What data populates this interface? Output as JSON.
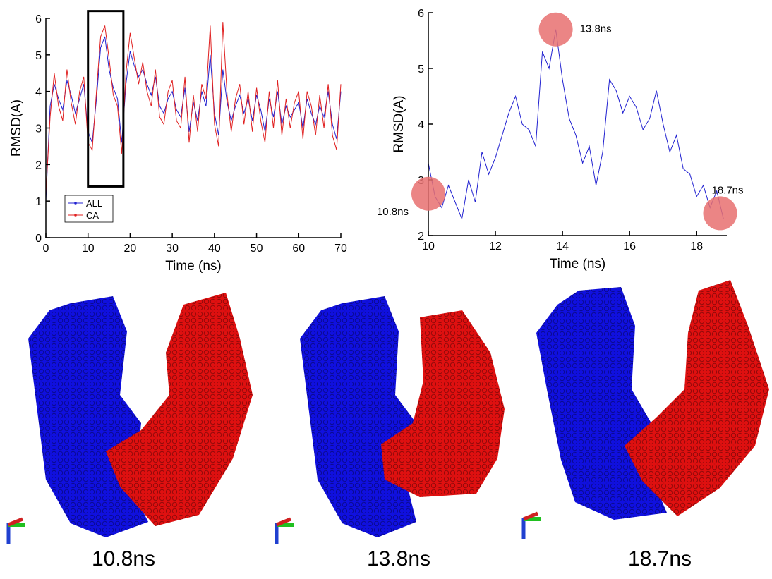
{
  "chart_data": [
    {
      "type": "line",
      "xlabel": "Time (ns)",
      "ylabel": "RMSD(A)",
      "xlim": [
        0,
        70
      ],
      "xticks": [
        0,
        10,
        20,
        30,
        40,
        50,
        60,
        70
      ],
      "ylim": [
        0,
        6
      ],
      "yticks": [
        0,
        1,
        2,
        3,
        4,
        5,
        6
      ],
      "legend": "lower left",
      "highlight": {
        "xlim": [
          10,
          18.4
        ],
        "ylim": [
          1.4,
          6.2
        ]
      },
      "x": [
        0,
        1,
        2,
        3,
        4,
        5,
        6,
        7,
        8,
        9,
        10,
        11,
        12,
        13,
        14,
        15,
        16,
        17,
        18,
        19,
        20,
        21,
        22,
        23,
        24,
        25,
        26,
        27,
        28,
        29,
        30,
        31,
        32,
        33,
        34,
        35,
        36,
        37,
        38,
        39,
        40,
        41,
        42,
        43,
        44,
        45,
        46,
        47,
        48,
        49,
        50,
        51,
        52,
        53,
        54,
        55,
        56,
        57,
        58,
        59,
        60,
        61,
        62,
        63,
        64,
        65,
        66,
        67,
        68,
        69,
        70
      ],
      "series": [
        {
          "name": "ALL",
          "color": "#2020d0",
          "values": [
            1.0,
            3.6,
            4.2,
            3.8,
            3.5,
            4.3,
            3.9,
            3.4,
            3.8,
            4.2,
            2.9,
            2.6,
            3.8,
            5.2,
            5.5,
            4.6,
            4.1,
            3.8,
            2.6,
            4.2,
            5.1,
            4.7,
            4.4,
            4.6,
            4.2,
            3.9,
            4.4,
            3.6,
            3.4,
            3.8,
            4.0,
            3.5,
            3.3,
            4.1,
            2.9,
            3.7,
            3.2,
            4.0,
            3.6,
            5.0,
            3.4,
            2.8,
            4.6,
            3.7,
            3.2,
            3.6,
            3.9,
            3.4,
            3.8,
            3.2,
            3.9,
            3.5,
            2.9,
            3.8,
            3.3,
            4.0,
            3.1,
            3.6,
            3.3,
            3.5,
            3.7,
            3.0,
            3.8,
            3.4,
            3.1,
            3.6,
            3.3,
            4.0,
            3.1,
            2.7,
            4.0
          ]
        },
        {
          "name": "CA",
          "color": "#e02020",
          "values": [
            1.2,
            3.3,
            4.5,
            3.6,
            3.2,
            4.6,
            3.7,
            3.1,
            4.0,
            4.4,
            2.6,
            2.4,
            4.0,
            5.5,
            5.8,
            4.9,
            3.9,
            3.6,
            2.3,
            4.5,
            5.6,
            4.9,
            4.2,
            4.8,
            4.0,
            3.6,
            4.6,
            3.3,
            3.1,
            4.0,
            4.3,
            3.2,
            3.0,
            4.4,
            2.6,
            3.9,
            2.9,
            4.2,
            3.8,
            5.8,
            3.1,
            2.5,
            5.9,
            3.9,
            2.9,
            3.8,
            4.2,
            3.1,
            4.0,
            2.9,
            4.1,
            3.2,
            2.6,
            4.0,
            3.0,
            4.3,
            2.8,
            3.8,
            3.0,
            3.7,
            4.0,
            2.7,
            4.0,
            3.6,
            2.8,
            3.9,
            3.0,
            4.2,
            2.8,
            2.4,
            4.2
          ]
        }
      ]
    },
    {
      "type": "line",
      "xlabel": "Time (ns)",
      "ylabel": "RMSD(A)",
      "xlim": [
        10,
        18.9
      ],
      "xticks": [
        10,
        12,
        14,
        16,
        18
      ],
      "ylim": [
        2,
        6
      ],
      "yticks": [
        2,
        3,
        4,
        5,
        6
      ],
      "x": [
        10.0,
        10.2,
        10.4,
        10.6,
        10.8,
        11.0,
        11.2,
        11.4,
        11.6,
        11.8,
        12.0,
        12.2,
        12.4,
        12.6,
        12.8,
        13.0,
        13.2,
        13.4,
        13.6,
        13.8,
        14.0,
        14.2,
        14.4,
        14.6,
        14.8,
        15.0,
        15.2,
        15.4,
        15.6,
        15.8,
        16.0,
        16.2,
        16.4,
        16.6,
        16.8,
        17.0,
        17.2,
        17.4,
        17.6,
        17.8,
        18.0,
        18.2,
        18.4,
        18.6,
        18.8
      ],
      "series": [
        {
          "color": "#2020d0",
          "values": [
            3.3,
            2.7,
            2.5,
            2.9,
            2.6,
            2.3,
            3.0,
            2.6,
            3.5,
            3.1,
            3.4,
            3.8,
            4.2,
            4.5,
            4.0,
            3.9,
            3.6,
            5.3,
            5.0,
            5.7,
            4.8,
            4.1,
            3.8,
            3.3,
            3.6,
            2.9,
            3.5,
            4.8,
            4.6,
            4.2,
            4.5,
            4.3,
            3.9,
            4.1,
            4.6,
            4.0,
            3.5,
            3.8,
            3.2,
            3.1,
            2.7,
            2.9,
            2.5,
            2.8,
            2.3
          ]
        }
      ],
      "annotations": [
        {
          "text": "10.8ns",
          "x": 10,
          "y": 2.75,
          "color": "#e87070"
        },
        {
          "text": "13.8ns",
          "x": 13.8,
          "y": 5.7,
          "color": "#e87070"
        },
        {
          "text": "18.7ns",
          "x": 18.7,
          "y": 2.4,
          "color": "#e87070"
        }
      ]
    }
  ],
  "structures": [
    {
      "caption": "10.8ns"
    },
    {
      "caption": "13.8ns"
    },
    {
      "caption": "18.7ns"
    }
  ]
}
